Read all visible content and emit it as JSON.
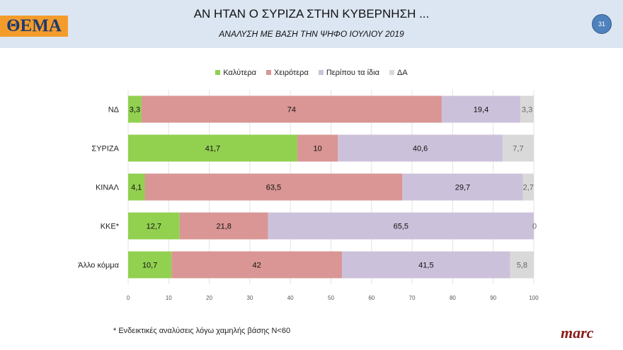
{
  "header": {
    "logo": "ΘΕΜΑ",
    "title": "ΑΝ ΗΤΑΝ Ο ΣΥΡΙΖΑ ΣΤΗΝ ΚΥΒΕΡΝΗΣΗ ...",
    "subtitle": "ΑΝΑΛΥΣΗ ΜΕ ΒΑΣΗ ΤΗΝ ΨΗΦΟ ΙΟΥΛΙΟΥ 2019",
    "page_number": "31"
  },
  "footer": {
    "note": "* Ενδεικτικές αναλύσεις λόγω χαμηλής βάσης Ν<60",
    "brand": "marc"
  },
  "chart_data": {
    "type": "bar",
    "orientation": "horizontal",
    "stacked": true,
    "categories": [
      "ΝΔ",
      "ΣΥΡΙΖΑ",
      "ΚΙΝΑΛ",
      "ΚΚΕ*",
      "Άλλο κόμμα"
    ],
    "series": [
      {
        "name": "Καλύτερα",
        "color": "#92d050",
        "values": [
          3.3,
          41.7,
          4.1,
          12.7,
          10.7
        ]
      },
      {
        "name": "Χειρότερα",
        "color": "#d99694",
        "values": [
          74,
          10,
          63.5,
          21.8,
          42
        ]
      },
      {
        "name": "Περίπου τα ίδια",
        "color": "#ccc1da",
        "values": [
          19.4,
          40.6,
          29.7,
          65.5,
          41.5
        ]
      },
      {
        "name": "ΔΑ",
        "color": "#d9d9d9",
        "values": [
          3.3,
          7.7,
          2.7,
          0,
          5.8
        ]
      }
    ],
    "xlim": [
      0,
      100
    ],
    "xticks": [
      0,
      10,
      20,
      30,
      40,
      50,
      60,
      70,
      80,
      90,
      100
    ],
    "grid": true,
    "legend": "top"
  }
}
